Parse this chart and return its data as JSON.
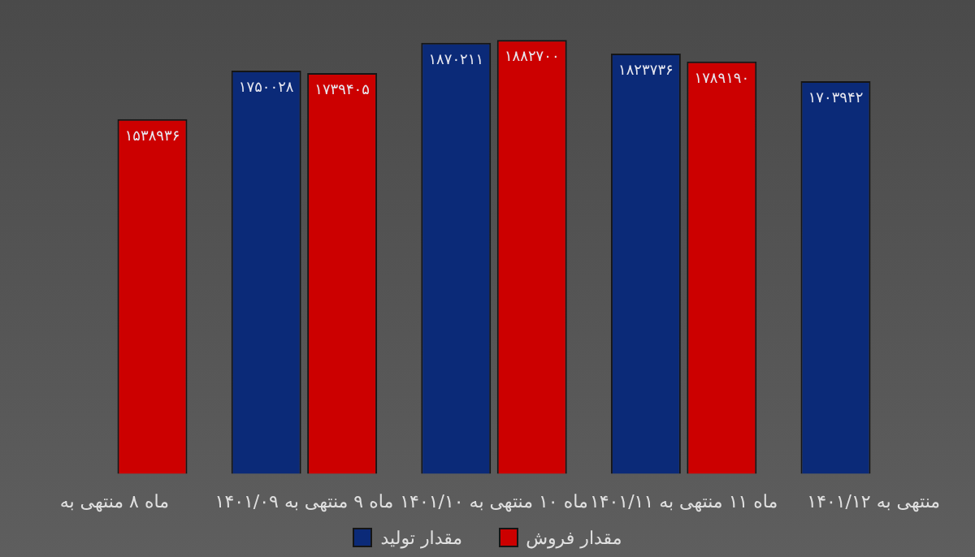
{
  "chart_data": {
    "type": "bar",
    "categories": [
      "ماه ۸ منتهی به",
      "ماه ۹ منتهی به ۱۴۰۱/۰۹",
      "ماه ۱۰ منتهی به ۱۴۰۱/۱۰",
      "ماه ۱۱ منتهی به ۱۴۰۱/۱۱",
      "منتهی به ۱۴۰۱/۱۲"
    ],
    "series": [
      {
        "name": "مقدار تولید",
        "color": "#0b2a78",
        "values": [
          null,
          1750028,
          1870211,
          1823736,
          1703942
        ],
        "value_labels": [
          null,
          "۱۷۵۰۰۲۸",
          "۱۸۷۰۲۱۱",
          "۱۸۲۳۷۳۶",
          "۱۷۰۳۹۴۲"
        ]
      },
      {
        "name": "مقدار فروش",
        "color": "#cc0000",
        "values": [
          1538936,
          1739405,
          1882700,
          1789190,
          null
        ],
        "value_labels": [
          "۱۵۳۸۹۳۶",
          "۱۷۳۹۴۰۵",
          "۱۸۸۲۷۰۰",
          "۱۷۸۹۱۹۰",
          null
        ]
      }
    ],
    "tick_labels": "x",
    "legend": "bottom"
  }
}
